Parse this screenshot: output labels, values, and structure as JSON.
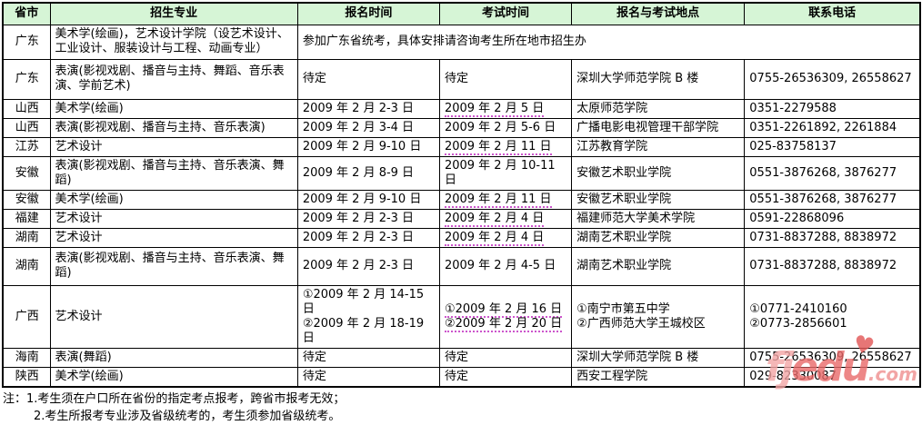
{
  "colors": {
    "header_bg": "#d6f5d6",
    "underline": "#cc55cc",
    "watermark_light": "#f3a6a6",
    "watermark_dark": "#e96a6a",
    "watermark_com": "#ef8f8f",
    "border": "#000000"
  },
  "table": {
    "headers": [
      "省市",
      "招生专业",
      "报名时间",
      "考试时间",
      "报名与考试地点",
      "联系电话"
    ],
    "rows": [
      {
        "province": "广东",
        "major": "美术学(绘画)，艺术设计学院（设艺术设计、工业设计、服装设计与工程、动画专业）",
        "merged_note": "参加广东省统考，具体安排请咨询考生所在地市招生办"
      },
      {
        "province": "广东",
        "major": "表演(影视戏剧、播音与主持、舞蹈、音乐表演、学前艺术)",
        "reg_time": [
          "待定"
        ],
        "exam_time": [
          {
            "text": "待定",
            "underlined": false
          }
        ],
        "location": [
          "深圳大学师范学院 B 楼"
        ],
        "phone": [
          "0755-26536309, 26558627"
        ]
      },
      {
        "province": "山西",
        "major": "美术学(绘画)",
        "reg_time": [
          "2009 年 2 月 2-3 日"
        ],
        "exam_time": [
          {
            "text": "2009 年 2 月 5 日",
            "underlined": true
          }
        ],
        "location": [
          "太原师范学院"
        ],
        "phone": [
          "0351-2279588"
        ]
      },
      {
        "province": "山西",
        "major": "表演(影视戏剧、播音与主持、音乐表演)",
        "reg_time": [
          "2009 年 2 月 3-4 日"
        ],
        "exam_time": [
          {
            "text": "2009 年 2 月 5-6 日",
            "underlined": false
          }
        ],
        "location": [
          "广播电影电视管理干部学院"
        ],
        "phone": [
          "0351-2261892, 2261884"
        ]
      },
      {
        "province": "江苏",
        "major": "艺术设计",
        "reg_time": [
          "2009 年 2 月 9-10 日"
        ],
        "exam_time": [
          {
            "text": "2009 年 2 月 11 日",
            "underlined": true
          }
        ],
        "location": [
          "江苏教育学院"
        ],
        "phone": [
          "025-83758137"
        ]
      },
      {
        "province": "安徽",
        "major": "表演(影视戏剧、播音与主持、音乐表演、舞蹈)",
        "reg_time": [
          "2009 年 2 月 8-9 日"
        ],
        "exam_time": [
          {
            "text": "2009 年 2 月 10-11 日",
            "underlined": false
          }
        ],
        "location": [
          "安徽艺术职业学院"
        ],
        "phone": [
          "0551-3876268, 3876277"
        ]
      },
      {
        "province": "安徽",
        "major": "美术学(绘画)",
        "reg_time": [
          "2009 年 2 月 9-10 日"
        ],
        "exam_time": [
          {
            "text": "2009 年 2 月 11 日",
            "underlined": true
          }
        ],
        "location": [
          "安徽艺术职业学院"
        ],
        "phone": [
          "0551-3876268, 3876277"
        ]
      },
      {
        "province": "福建",
        "major": "艺术设计",
        "reg_time": [
          "2009 年 2 月 2-3 日"
        ],
        "exam_time": [
          {
            "text": "2009 年 2 月 4 日",
            "underlined": true
          }
        ],
        "location": [
          "福建师范大学美术学院"
        ],
        "phone": [
          "0591-22868096"
        ]
      },
      {
        "province": "湖南",
        "major": "艺术设计",
        "reg_time": [
          "2009 年 2 月 2-3 日"
        ],
        "exam_time": [
          {
            "text": "2009 年 2 月 4 日",
            "underlined": true
          }
        ],
        "location": [
          "湖南艺术职业学院"
        ],
        "phone": [
          "0731-8837288, 8838972"
        ]
      },
      {
        "province": "湖南",
        "major": "表演(影视戏剧、播音与主持、音乐表演、舞蹈)",
        "reg_time": [
          "2009 年 2 月 2-3 日"
        ],
        "exam_time": [
          {
            "text": "2009 年 2 月 4-5 日",
            "underlined": false
          }
        ],
        "location": [
          "湖南艺术职业学院"
        ],
        "phone": [
          "0731-8837288, 8838972"
        ]
      },
      {
        "province": "广西",
        "major": "艺术设计",
        "reg_time": [
          "①2009 年 2 月 14-15 日",
          "②2009 年 2 月 18-19 日"
        ],
        "exam_time": [
          {
            "text": "①2009 年 2 月 16 日",
            "underlined": true
          },
          {
            "text": "②2009 年 2 月 20 日",
            "underlined": true
          }
        ],
        "location": [
          "①南宁市第五中学",
          "②广西师范大学王城校区"
        ],
        "phone": [
          "①0771-2410160",
          "②0773-2856601"
        ]
      },
      {
        "province": "海南",
        "major": "表演(舞蹈)",
        "reg_time": [
          "待定"
        ],
        "exam_time": [
          {
            "text": "待定",
            "underlined": false
          }
        ],
        "location": [
          "深圳大学师范学院 B 楼"
        ],
        "phone": [
          "0755-26536309, 26558627"
        ]
      },
      {
        "province": "陕西",
        "major": "美术学(绘画)",
        "reg_time": [
          "待定"
        ],
        "exam_time": [
          {
            "text": "待定",
            "underlined": false
          }
        ],
        "location": [
          "西安工程学院"
        ],
        "phone": [
          "029-82330087"
        ]
      }
    ]
  },
  "notes": {
    "line1": "注：1.考生须在户口所在省份的指定考点报考，跨省市报考无效；",
    "line2": "2.考生所报考专业涉及省级统考的，考生须参加省级统考。"
  },
  "watermark": {
    "part1": "fj",
    "part2": "edu",
    "suffix": ".com",
    "heart": "♥"
  }
}
